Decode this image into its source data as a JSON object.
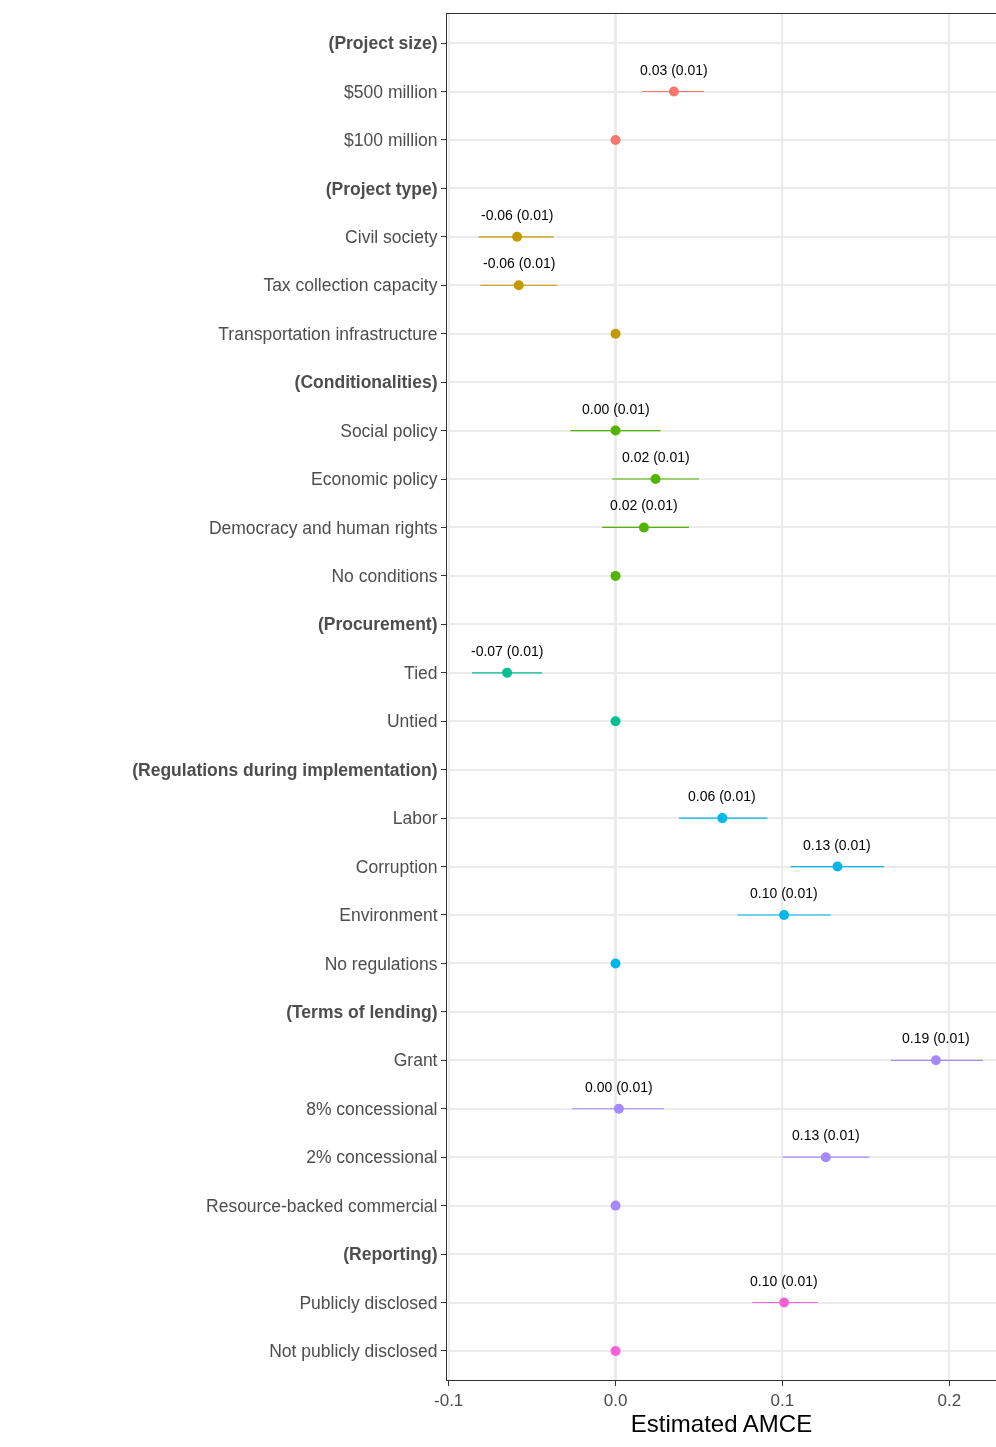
{
  "chart_data": {
    "type": "scatter",
    "orientation": "horizontal",
    "xlabel": "Estimated AMCE",
    "categories": [
      "(Project size)",
      "$500 million",
      "$100 million",
      "(Project type)",
      "Civil society",
      "Tax collection capacity",
      "Transportation infrastructure",
      "(Conditionalities)",
      "Social policy",
      "Economic policy",
      "Democracy and human rights",
      "No conditions",
      "(Procurement)",
      "Tied",
      "Untied",
      "(Regulations during implementation)",
      "Labor",
      "Corruption",
      "Environment",
      "No regulations",
      "(Terms of lending)",
      "Grant",
      "8% concessional",
      "2% concessional",
      "Resource-backed commercial",
      "(Reporting)",
      "Publicly disclosed",
      "Not publicly disclosed"
    ],
    "values": [
      null,
      0.035,
      0,
      null,
      -0.059,
      -0.058,
      0,
      null,
      0.0,
      0.024,
      0.017,
      0,
      null,
      -0.065,
      0,
      null,
      0.064,
      0.133,
      0.101,
      0,
      null,
      0.192,
      0.002,
      0.126,
      0,
      null,
      0.101,
      0
    ],
    "errors": [
      null,
      [
        0.016,
        0.053
      ],
      null,
      null,
      [
        -0.082,
        -0.037
      ],
      [
        -0.081,
        -0.035
      ],
      null,
      null,
      [
        -0.027,
        0.027
      ],
      [
        -0.002,
        0.05
      ],
      [
        -0.008,
        0.044
      ],
      null,
      null,
      [
        -0.086,
        -0.044
      ],
      null,
      null,
      [
        0.038,
        0.091
      ],
      [
        0.105,
        0.161
      ],
      [
        0.073,
        0.129
      ],
      null,
      null,
      [
        0.165,
        0.22
      ],
      [
        -0.026,
        0.029
      ],
      [
        0.1,
        0.152
      ],
      null,
      null,
      [
        0.082,
        0.121
      ],
      null
    ],
    "value_labels": [
      null,
      "0.03 (0.01)",
      null,
      null,
      "-0.06 (0.01)",
      "-0.06 (0.01)",
      null,
      null,
      "0.00 (0.01)",
      "0.02 (0.01)",
      "0.02 (0.01)",
      null,
      null,
      "-0.07 (0.01)",
      null,
      null,
      "0.06 (0.01)",
      "0.13 (0.01)",
      "0.10 (0.01)",
      null,
      null,
      "0.19 (0.01)",
      "0.00 (0.01)",
      "0.13 (0.01)",
      null,
      null,
      "0.10 (0.01)",
      null
    ],
    "colors": [
      null,
      "#f8766d",
      "#f8766d",
      null,
      "#c49a00",
      "#c49a00",
      "#c49a00",
      null,
      "#53b400",
      "#53b400",
      "#53b400",
      "#53b400",
      null,
      "#00c094",
      "#00c094",
      null,
      "#00b6eb",
      "#00b6eb",
      "#00b6eb",
      "#00b6eb",
      null,
      "#a58aff",
      "#a58aff",
      "#a58aff",
      "#a58aff",
      null,
      "#fb61d7",
      "#fb61d7"
    ],
    "xlim": [
      -0.101,
      0.228
    ],
    "xticks": [
      -0.1,
      {
        "value": 0,
        "label": "0.0"
      },
      0.1,
      0.2
    ],
    "ref_lines": [
      {
        "axis": "x",
        "value": 0,
        "color": "#aaaaaa"
      }
    ],
    "grid": true,
    "marker": "circle",
    "legend": false
  }
}
